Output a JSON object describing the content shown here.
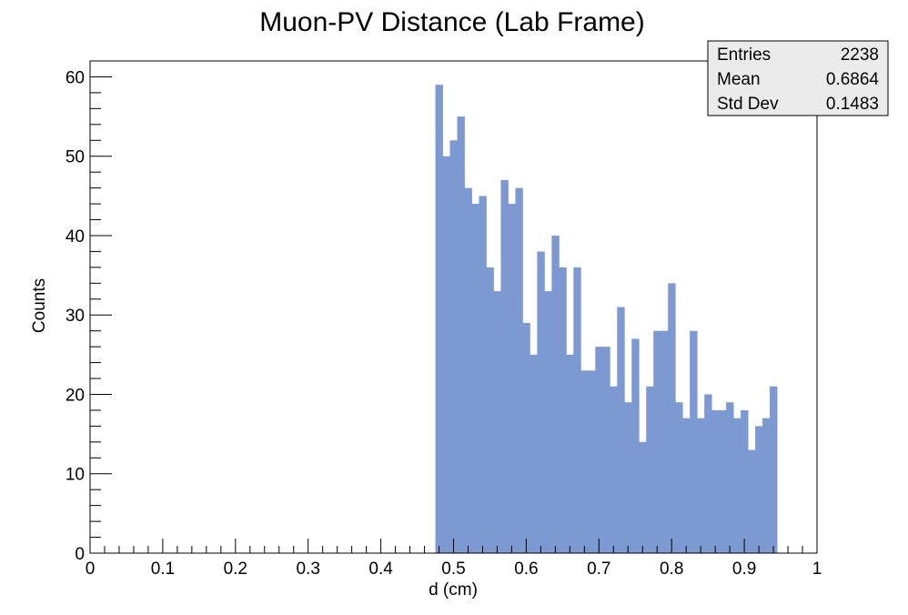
{
  "chart_data": {
    "type": "bar",
    "title": "Muon-PV Distance (Lab Frame)",
    "xlabel": "d (cm)",
    "ylabel": "Counts",
    "xlim": [
      0,
      1
    ],
    "ylim": [
      0,
      62
    ],
    "bin_width": 0.01,
    "xticks": [
      0,
      0.1,
      0.2,
      0.3,
      0.4,
      0.5,
      0.6,
      0.7,
      0.8,
      0.9,
      1
    ],
    "xtick_labels": [
      "0",
      "0.1",
      "0.2",
      "0.3",
      "0.4",
      "0.5",
      "0.6",
      "0.7",
      "0.8",
      "0.9",
      "1"
    ],
    "yticks": [
      0,
      10,
      20,
      30,
      40,
      50,
      60
    ],
    "ytick_labels": [
      "0",
      "10",
      "20",
      "30",
      "40",
      "50",
      "60"
    ],
    "bin_edges_start": 0.475,
    "values": [
      59,
      50,
      52,
      55,
      46,
      44,
      45,
      36,
      33,
      47,
      44,
      46,
      29,
      25,
      38,
      33,
      40,
      36,
      25,
      36,
      23,
      23,
      26,
      26,
      21,
      31,
      19,
      27,
      14,
      21,
      28,
      28,
      34,
      19,
      17,
      28,
      17,
      20,
      18,
      18,
      19,
      17,
      18,
      13,
      16,
      17,
      21
    ],
    "fill_color": "#7d99d1",
    "stats": {
      "rows": [
        {
          "label": "Entries",
          "value": "2238"
        },
        {
          "label": "Mean",
          "value": "0.6864"
        },
        {
          "label": "Std Dev",
          "value": "0.1483"
        }
      ],
      "placement": "top-right"
    },
    "grid": false,
    "legend": "none"
  }
}
